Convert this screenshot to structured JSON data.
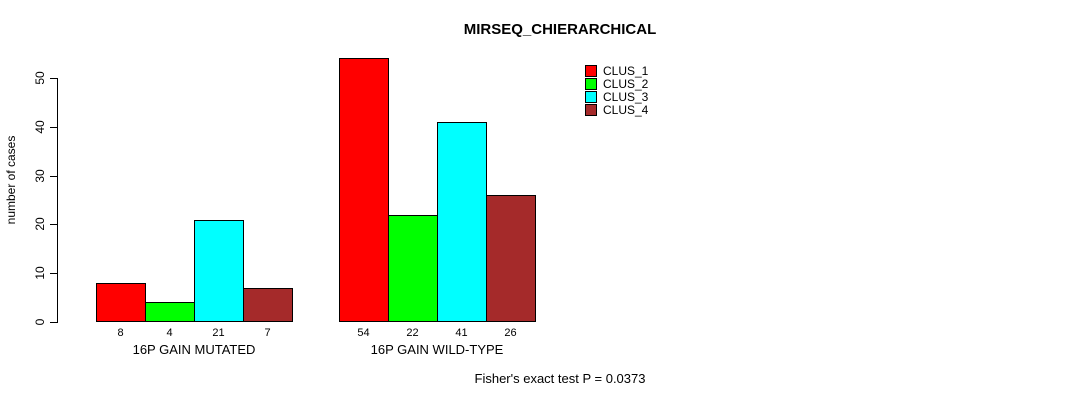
{
  "chart_data": {
    "type": "bar",
    "title": "MIRSEQ_CHIERARCHICAL",
    "xlabel": "",
    "ylabel": "number of cases",
    "categories": [
      "16P GAIN MUTATED",
      "16P GAIN WILD-TYPE"
    ],
    "series": [
      {
        "name": "CLUS_1",
        "color": "#ff0000",
        "values": [
          8,
          54
        ]
      },
      {
        "name": "CLUS_2",
        "color": "#00ff00",
        "values": [
          4,
          22
        ]
      },
      {
        "name": "CLUS_3",
        "color": "#00ffff",
        "values": [
          21,
          41
        ]
      },
      {
        "name": "CLUS_4",
        "color": "#a52a2a",
        "values": [
          7,
          26
        ]
      }
    ],
    "ylim": [
      0,
      50
    ],
    "yticks": [
      0,
      10,
      20,
      30,
      40,
      50
    ],
    "bar_value_labels_shown": true,
    "grid": false,
    "legend_position": "top-right",
    "annotation": "Fisher's exact test P = 0.0373"
  }
}
